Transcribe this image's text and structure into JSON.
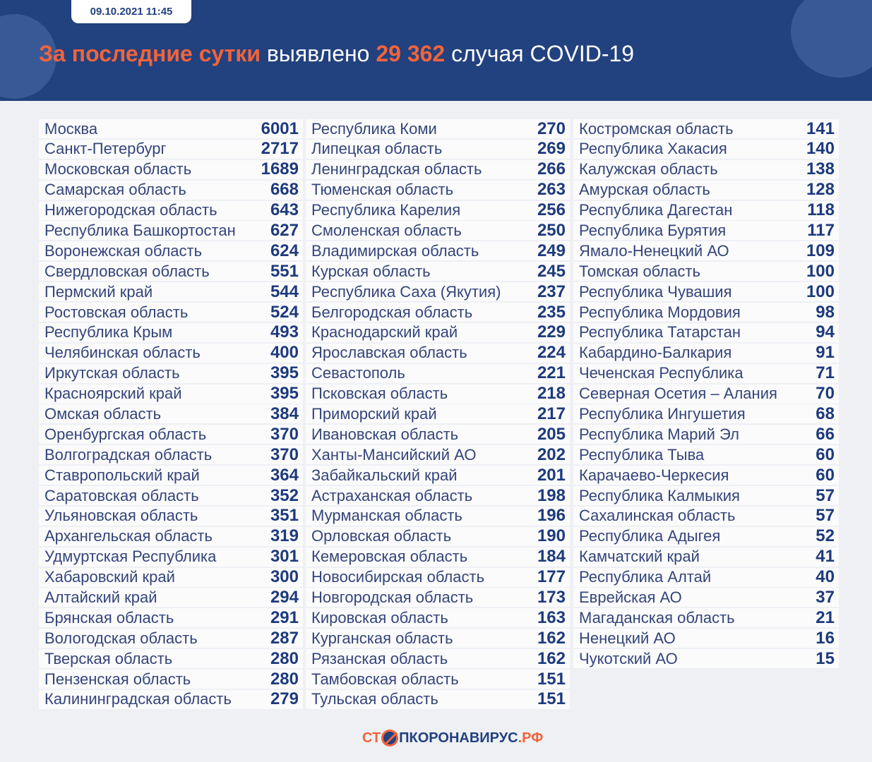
{
  "header": {
    "date": "09.10.2021 11:45",
    "title_accent": "За последние сутки",
    "title_mid": "выявлено",
    "total": "29 362",
    "title_end": "случая COVID-19"
  },
  "colors": {
    "header_bg": "#22417f",
    "accent": "#f0643c",
    "value": "#1d3a7c"
  },
  "columns": [
    [
      [
        "Москва",
        "6001"
      ],
      [
        "Санкт-Петербург",
        "2717"
      ],
      [
        "Московская область",
        "1689"
      ],
      [
        "Самарская область",
        "668"
      ],
      [
        "Нижегородская область",
        "643"
      ],
      [
        "Республика Башкортостан",
        "627"
      ],
      [
        "Воронежская область",
        "624"
      ],
      [
        "Свердловская область",
        "551"
      ],
      [
        "Пермский край",
        "544"
      ],
      [
        "Ростовская область",
        "524"
      ],
      [
        "Республика Крым",
        "493"
      ],
      [
        "Челябинская область",
        "400"
      ],
      [
        "Иркутская область",
        "395"
      ],
      [
        "Красноярский край",
        "395"
      ],
      [
        "Омская область",
        "384"
      ],
      [
        "Оренбургская область",
        "370"
      ],
      [
        "Волгоградская область",
        "370"
      ],
      [
        "Ставропольский край",
        "364"
      ],
      [
        "Саратовская область",
        "352"
      ],
      [
        "Ульяновская область",
        "351"
      ],
      [
        "Архангельская область",
        "319"
      ],
      [
        "Удмуртская Республика",
        "301"
      ],
      [
        "Хабаровский край",
        "300"
      ],
      [
        "Алтайский край",
        "294"
      ],
      [
        "Брянская область",
        "291"
      ],
      [
        "Вологодская область",
        "287"
      ],
      [
        "Тверская область",
        "280"
      ],
      [
        "Пензенская область",
        "280"
      ],
      [
        "Калининградская область",
        "279"
      ]
    ],
    [
      [
        "Республика Коми",
        "270"
      ],
      [
        "Липецкая область",
        "269"
      ],
      [
        "Ленинградская область",
        "266"
      ],
      [
        "Тюменская область",
        "263"
      ],
      [
        "Республика Карелия",
        "256"
      ],
      [
        "Смоленская область",
        "250"
      ],
      [
        "Владимирская область",
        "249"
      ],
      [
        "Курская область",
        "245"
      ],
      [
        "Республика Саха (Якутия)",
        "237"
      ],
      [
        "Белгородская область",
        "235"
      ],
      [
        "Краснодарский край",
        "229"
      ],
      [
        "Ярославская область",
        "224"
      ],
      [
        "Севастополь",
        "221"
      ],
      [
        "Псковская область",
        "218"
      ],
      [
        "Приморский край",
        "217"
      ],
      [
        "Ивановская область",
        "205"
      ],
      [
        "Ханты-Мансийский АО",
        "202"
      ],
      [
        "Забайкальский край",
        "201"
      ],
      [
        "Астраханская область",
        "198"
      ],
      [
        "Мурманская область",
        "196"
      ],
      [
        "Орловская область",
        "190"
      ],
      [
        "Кемеровская область",
        "184"
      ],
      [
        "Новосибирская область",
        "177"
      ],
      [
        "Новгородская область",
        "173"
      ],
      [
        "Кировская область",
        "163"
      ],
      [
        "Курганская область",
        "162"
      ],
      [
        "Рязанская область",
        "162"
      ],
      [
        "Тамбовская область",
        "151"
      ],
      [
        "Тульская область",
        "151"
      ]
    ],
    [
      [
        "Костромская область",
        "141"
      ],
      [
        "Республика Хакасия",
        "140"
      ],
      [
        "Калужская область",
        "138"
      ],
      [
        "Амурская область",
        "128"
      ],
      [
        "Республика Дагестан",
        "118"
      ],
      [
        "Республика Бурятия",
        "117"
      ],
      [
        "Ямало-Ненецкий АО",
        "109"
      ],
      [
        "Томская область",
        "100"
      ],
      [
        "Республика Чувашия",
        "100"
      ],
      [
        "Республика Мордовия",
        "98"
      ],
      [
        "Республика Татарстан",
        "94"
      ],
      [
        "Кабардино-Балкария",
        "91"
      ],
      [
        "Чеченская Республика",
        "71"
      ],
      [
        "Северная Осетия – Алания",
        "70"
      ],
      [
        "Республика Ингушетия",
        "68"
      ],
      [
        "Республика Марий Эл",
        "66"
      ],
      [
        "Республика Тыва",
        "60"
      ],
      [
        "Карачаево-Черкесия",
        "60"
      ],
      [
        "Республика Калмыкия",
        "57"
      ],
      [
        "Сахалинская область",
        "57"
      ],
      [
        "Республика Адыгея",
        "52"
      ],
      [
        "Камчатский край",
        "41"
      ],
      [
        "Республика Алтай",
        "40"
      ],
      [
        "Еврейская АО",
        "37"
      ],
      [
        "Магаданская область",
        "21"
      ],
      [
        "Ненецкий АО",
        "16"
      ],
      [
        "Чукотский АО",
        "15"
      ]
    ]
  ],
  "footer": {
    "logo_left": "СТ",
    "logo_right": "ПКОРОНАВИРУС",
    "logo_suffix": ".РФ"
  }
}
